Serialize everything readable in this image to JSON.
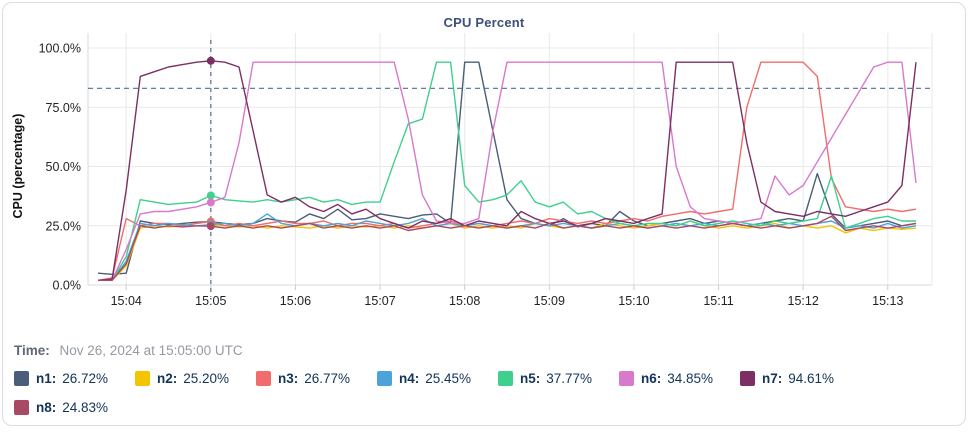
{
  "title": "CPU Percent",
  "time_row": {
    "label": "Time:",
    "value": "Nov 26, 2024 at 15:05:00 UTC"
  },
  "legend": [
    {
      "name": "n1",
      "label": "n1:",
      "value": "26.72%",
      "color": "#4a5e78"
    },
    {
      "name": "n2",
      "label": "n2:",
      "value": "25.20%",
      "color": "#f5c400"
    },
    {
      "name": "n3",
      "label": "n3:",
      "value": "26.77%",
      "color": "#f16d6b"
    },
    {
      "name": "n4",
      "label": "n4:",
      "value": "25.45%",
      "color": "#4ba3d9"
    },
    {
      "name": "n5",
      "label": "n5:",
      "value": "37.77%",
      "color": "#3fd08e"
    },
    {
      "name": "n6",
      "label": "n6:",
      "value": "34.85%",
      "color": "#d879cb"
    },
    {
      "name": "n7",
      "label": "n7:",
      "value": "94.61%",
      "color": "#7d2f63"
    },
    {
      "name": "n8",
      "label": "n8:",
      "value": "24.83%",
      "color": "#a84a64"
    }
  ],
  "colors": {
    "grid": "#e8e9ec",
    "axis": "#d7dadd",
    "tick": "#c9ccd1",
    "dashed_line": "#4f7287",
    "axis_text": "#1f2125",
    "title_text": "#3c5078"
  },
  "chart_data": {
    "type": "line",
    "title": "CPU Percent",
    "xlabel": "",
    "ylabel": "CPU (percentage)",
    "ylim": [
      0,
      100
    ],
    "y_tick_values": [
      100,
      75,
      50,
      25,
      0
    ],
    "y_tick_labels": [
      "100.0%",
      "75.0%",
      "50.0%",
      "25.0%",
      "0.0%"
    ],
    "x_start_time": "15:03:40",
    "x_interval_seconds": 10,
    "x_tick_labels": [
      "15:04",
      "15:05",
      "15:06",
      "15:07",
      "15:08",
      "15:09",
      "15:10",
      "15:11",
      "15:12",
      "15:13"
    ],
    "x_tick_indices": [
      2,
      8,
      14,
      20,
      26,
      32,
      38,
      44,
      50,
      56
    ],
    "grid": true,
    "legend_position": "bottom",
    "threshold_line_value": 83,
    "crosshair": {
      "time": "15:05:00",
      "index": 8
    },
    "series": [
      {
        "name": "n1",
        "color": "#4a5e78",
        "values": [
          5,
          4.5,
          5,
          27,
          26,
          25.5,
          26,
          26.5,
          26.72,
          26,
          25.5,
          26,
          28,
          27,
          26.5,
          30,
          28,
          32,
          27.5,
          28,
          30,
          29,
          28,
          29.5,
          30,
          26,
          94,
          94,
          65,
          36,
          28,
          26,
          25,
          28,
          24.5,
          26,
          25,
          31,
          27,
          25,
          26,
          27,
          28,
          26,
          27,
          26,
          25,
          26,
          27,
          28,
          27,
          47,
          30,
          24,
          25,
          26,
          27,
          25,
          26
        ]
      },
      {
        "name": "n2",
        "color": "#f5c400",
        "values": [
          2,
          2,
          8,
          24,
          25,
          24.5,
          25,
          25,
          25.2,
          25,
          24.5,
          25,
          24,
          25,
          24.5,
          24,
          25,
          24,
          25,
          24.5,
          25,
          24,
          25,
          24,
          25,
          26,
          24,
          25,
          24,
          25,
          24,
          26,
          25,
          24,
          25,
          24,
          26,
          25,
          24,
          25,
          26,
          25,
          27,
          25,
          24,
          25,
          24,
          25,
          26,
          24,
          25,
          24,
          25,
          22,
          24,
          23,
          24,
          23.5,
          24
        ]
      },
      {
        "name": "n3",
        "color": "#f16d6b",
        "values": [
          2,
          3,
          28,
          25,
          26,
          26,
          25,
          26,
          26.77,
          25,
          26,
          25,
          26,
          27,
          26,
          26,
          27,
          25,
          26,
          26,
          25,
          26,
          24,
          25,
          26,
          27,
          25,
          26,
          25,
          26,
          27,
          26,
          28,
          27,
          26,
          27,
          26,
          27,
          28,
          27,
          29,
          30,
          31,
          30,
          31,
          32,
          75,
          94,
          94,
          94,
          94,
          88,
          45,
          33,
          32,
          31,
          32,
          31,
          32
        ]
      },
      {
        "name": "n4",
        "color": "#4ba3d9",
        "values": [
          2,
          2,
          10,
          26,
          25,
          26,
          25.5,
          25,
          25.45,
          26,
          25,
          26,
          30,
          26,
          25,
          26,
          25,
          26,
          25,
          27,
          26,
          25,
          26,
          28,
          25,
          26,
          25,
          26,
          25,
          24,
          25,
          26,
          25,
          26,
          25,
          24,
          25,
          26,
          25,
          24,
          25,
          26,
          25,
          26,
          25,
          26,
          25,
          26,
          25,
          26,
          25,
          26,
          27,
          24,
          25,
          24,
          26,
          24,
          25
        ]
      },
      {
        "name": "n5",
        "color": "#3fd08e",
        "values": [
          2,
          2,
          12,
          36,
          35,
          34,
          34.5,
          35,
          37.77,
          36,
          35.5,
          35,
          36,
          35,
          36,
          37,
          35,
          36,
          34,
          35,
          35,
          52,
          68,
          70,
          94,
          94,
          42,
          35,
          36,
          38,
          44,
          35,
          33,
          35,
          30,
          31,
          28,
          26,
          25,
          26,
          26,
          25,
          27,
          25,
          26,
          27,
          26,
          25,
          27,
          26,
          27,
          28,
          46,
          24,
          26,
          28,
          29,
          27,
          27
        ]
      },
      {
        "name": "n6",
        "color": "#d879cb",
        "values": [
          2,
          2,
          15,
          30,
          31,
          31,
          32,
          33,
          34.85,
          37,
          60,
          94,
          94,
          94,
          94,
          94,
          94,
          94,
          94,
          94,
          94,
          94,
          70,
          38,
          27,
          26,
          26,
          28,
          65,
          94,
          94,
          94,
          94,
          94,
          94,
          94,
          94,
          94,
          94,
          94,
          94,
          50,
          33,
          28,
          27,
          26,
          27,
          28,
          46,
          38,
          42,
          52,
          62,
          72,
          82,
          92,
          94,
          94,
          43
        ]
      },
      {
        "name": "n7",
        "color": "#7d2f63",
        "values": [
          2,
          2.5,
          40,
          88,
          90,
          92,
          93,
          94,
          94.61,
          94,
          92,
          65,
          38,
          35,
          37,
          33,
          31,
          34,
          30,
          32,
          28,
          26,
          24,
          27,
          26,
          28,
          25,
          27,
          26,
          25,
          31,
          28,
          26,
          27,
          25,
          26,
          28,
          27,
          26,
          28,
          30,
          94,
          94,
          94,
          94,
          94,
          60,
          35,
          31,
          30,
          29,
          31,
          30,
          29,
          31,
          33,
          35,
          42,
          94
        ]
      },
      {
        "name": "n8",
        "color": "#a84a64",
        "values": [
          2,
          2,
          9,
          25,
          24,
          25,
          24.5,
          25,
          24.83,
          24,
          25,
          24,
          25,
          24,
          25,
          26,
          24,
          25,
          24,
          25,
          24,
          25,
          23,
          24,
          25,
          24,
          25,
          24,
          25,
          24,
          25,
          24,
          26,
          24,
          25,
          24,
          25,
          24,
          25,
          24,
          25,
          24,
          25,
          24,
          25,
          26,
          25,
          24,
          25,
          24,
          25,
          26,
          29,
          23,
          24,
          25,
          24,
          25,
          26
        ]
      }
    ]
  }
}
